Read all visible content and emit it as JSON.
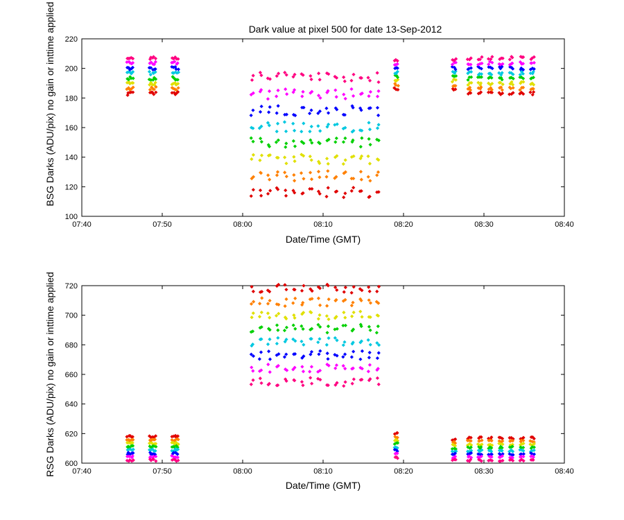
{
  "figure": {
    "title": "Dark value at pixel 500 for date 13-Sep-2012"
  },
  "colors": {
    "red": "#e00000",
    "orange": "#ff8000",
    "yellow": "#e0e000",
    "green": "#00d000",
    "cyan": "#00c8e0",
    "blue": "#0000ff",
    "magenta": "#ff00ff",
    "pink": "#ff0080"
  },
  "chart_data": [
    {
      "type": "scatter",
      "title": "Dark value at pixel 500 for date 13-Sep-2012",
      "xlabel": "Date/Time (GMT)",
      "ylabel": "BSG Darks (ADU/pix) no gain or inttime applied",
      "xlim": [
        "07:40",
        "08:40"
      ],
      "ylim": [
        100,
        220
      ],
      "x_tick_labels": [
        "07:40",
        "07:50",
        "08:00",
        "08:10",
        "08:20",
        "08:30",
        "08:40"
      ],
      "y_ticks": [
        100,
        120,
        140,
        160,
        180,
        200,
        220
      ],
      "grid": false,
      "marker": "diamond",
      "groups": [
        {
          "label": "07:46-07:52",
          "x_start": "07:46",
          "x_end": "07:51.6",
          "columns": 3,
          "shots_per_column": 5,
          "ymin": 183,
          "ymax": 207
        },
        {
          "label": "08:01-08:17",
          "x_start": "08:01.2",
          "x_end": "08:16.8",
          "columns": 16,
          "shots_per_column": 2,
          "ymin": 116,
          "ymax": 194
        },
        {
          "label": "08:19",
          "x_start": "08:19.1",
          "x_end": "08:19.5",
          "columns": 1,
          "shots_per_column": 3,
          "ymin": 186,
          "ymax": 206
        },
        {
          "label": "08:26",
          "x_start": "08:26.3",
          "x_end": "08:26.6",
          "columns": 1,
          "shots_per_column": 3,
          "ymin": 186,
          "ymax": 206
        },
        {
          "label": "08:28-08:36",
          "x_start": "08:28.2",
          "x_end": "08:36",
          "columns": 7,
          "shots_per_column": 3,
          "ymin": 183,
          "ymax": 207
        }
      ]
    },
    {
      "type": "scatter",
      "title": "",
      "xlabel": "Date/Time (GMT)",
      "ylabel": "RSG Darks (ADU/pix) no gain or inttime applied",
      "xlim": [
        "07:40",
        "08:40"
      ],
      "ylim": [
        600,
        720
      ],
      "x_tick_labels": [
        "07:40",
        "07:50",
        "08:00",
        "08:10",
        "08:20",
        "08:30",
        "08:40"
      ],
      "y_ticks": [
        600,
        620,
        640,
        660,
        680,
        700,
        720
      ],
      "grid": false,
      "marker": "diamond",
      "groups": [
        {
          "label": "07:46-07:52",
          "x_start": "07:46",
          "x_end": "07:51.6",
          "columns": 3,
          "shots_per_column": 5,
          "ymin": 602,
          "ymax": 618
        },
        {
          "label": "08:01-08:17",
          "x_start": "08:01.2",
          "x_end": "08:16.8",
          "columns": 16,
          "shots_per_column": 2,
          "ymin": 655,
          "ymax": 718
        },
        {
          "label": "08:19",
          "x_start": "08:19.1",
          "x_end": "08:19.5",
          "columns": 1,
          "shots_per_column": 3,
          "ymin": 604,
          "ymax": 620
        },
        {
          "label": "08:26",
          "x_start": "08:26.3",
          "x_end": "08:26.6",
          "columns": 1,
          "shots_per_column": 3,
          "ymin": 602,
          "ymax": 616
        },
        {
          "label": "08:28-08:36",
          "x_start": "08:28.2",
          "x_end": "08:36",
          "columns": 7,
          "shots_per_column": 3,
          "ymin": 602,
          "ymax": 617
        }
      ]
    }
  ]
}
